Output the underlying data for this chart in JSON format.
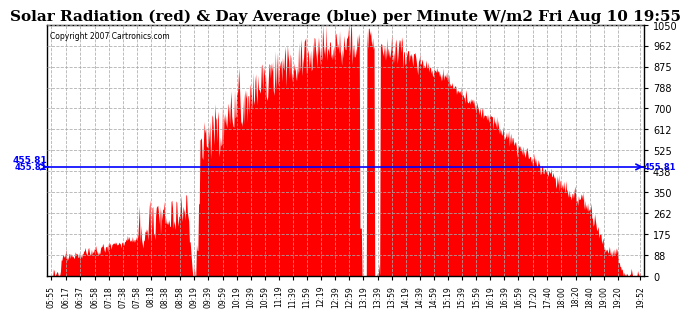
{
  "title": "Solar Radiation (red) & Day Average (blue) per Minute W/m2 Fri Aug 10 19:55",
  "copyright": "Copyright 2007 Cartronics.com",
  "day_average": 455.81,
  "y_max": 1050.0,
  "y_min": 0.0,
  "y_ticks": [
    0.0,
    87.5,
    175.0,
    262.5,
    350.0,
    437.5,
    525.0,
    612.5,
    700.0,
    787.5,
    875.0,
    962.5,
    1050.0
  ],
  "fill_color": "#FF0000",
  "avg_line_color": "#0000FF",
  "background_color": "#FFFFFF",
  "grid_color": "#AAAAAA",
  "title_fontsize": 11,
  "x_labels": [
    "05:55",
    "06:17",
    "06:37",
    "06:58",
    "07:18",
    "07:38",
    "07:58",
    "08:18",
    "08:38",
    "08:58",
    "09:19",
    "09:39",
    "09:59",
    "10:19",
    "10:39",
    "10:59",
    "11:19",
    "11:39",
    "11:59",
    "12:19",
    "12:39",
    "12:59",
    "13:19",
    "13:39",
    "13:59",
    "14:19",
    "14:39",
    "14:59",
    "15:19",
    "15:39",
    "15:59",
    "16:19",
    "16:39",
    "16:59",
    "17:20",
    "17:40",
    "18:00",
    "18:20",
    "18:40",
    "19:00",
    "19:20",
    "19:52"
  ]
}
